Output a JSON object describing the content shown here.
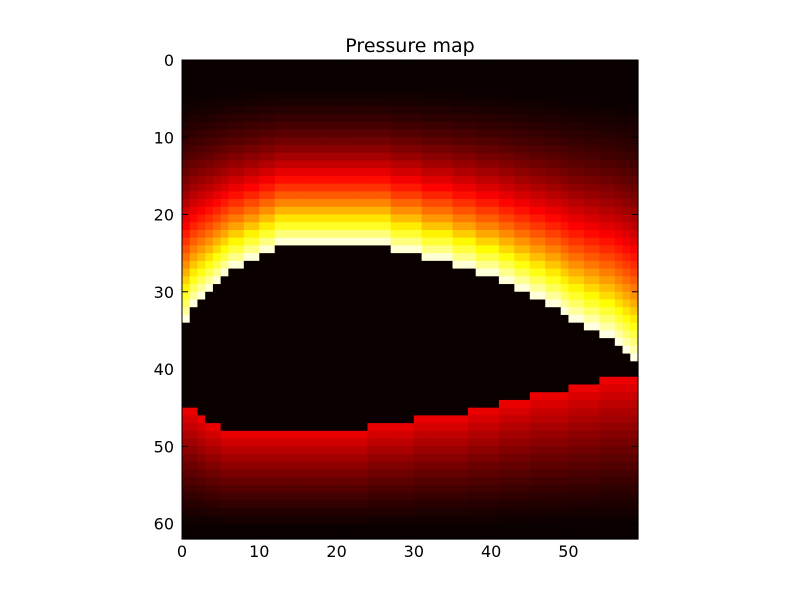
{
  "chart_data": {
    "type": "heatmap",
    "title": "Pressure map",
    "xlabel": "",
    "ylabel": "",
    "colormap": "hot",
    "xlim": [
      0,
      59
    ],
    "ylim": [
      62,
      0
    ],
    "xticks": [
      0,
      10,
      20,
      30,
      40,
      50
    ],
    "yticks": [
      0,
      10,
      20,
      30,
      40,
      50,
      60
    ],
    "grid_shape": {
      "rows": 62,
      "cols": 59
    },
    "field_description_values": {
      "upper_band_peak_row_center": 25,
      "upper_band_peak_row_edges": 40,
      "upper_band_max_value": 1.0,
      "lower_band_start_row_left": 45,
      "lower_band_start_row_right": 41,
      "lower_band_max_value": 0.35,
      "obstacle_value": 0.0
    },
    "obstacle_top_boundary": [
      [
        0,
        34
      ],
      [
        1,
        32
      ],
      [
        2,
        31
      ],
      [
        3,
        30
      ],
      [
        4,
        29
      ],
      [
        5,
        28
      ],
      [
        6,
        27
      ],
      [
        7,
        27
      ],
      [
        8,
        26
      ],
      [
        9,
        26
      ],
      [
        10,
        25
      ],
      [
        11,
        25
      ],
      [
        12,
        24
      ],
      [
        13,
        24
      ],
      [
        14,
        24
      ],
      [
        15,
        24
      ],
      [
        16,
        24
      ],
      [
        17,
        24
      ],
      [
        18,
        24
      ],
      [
        19,
        24
      ],
      [
        20,
        24
      ],
      [
        21,
        24
      ],
      [
        22,
        24
      ],
      [
        23,
        24
      ],
      [
        24,
        24
      ],
      [
        25,
        24
      ],
      [
        26,
        24
      ],
      [
        27,
        25
      ],
      [
        28,
        25
      ],
      [
        29,
        25
      ],
      [
        30,
        25
      ],
      [
        31,
        26
      ],
      [
        32,
        26
      ],
      [
        33,
        26
      ],
      [
        34,
        26
      ],
      [
        35,
        27
      ],
      [
        36,
        27
      ],
      [
        37,
        27
      ],
      [
        38,
        28
      ],
      [
        39,
        28
      ],
      [
        40,
        28
      ],
      [
        41,
        29
      ],
      [
        42,
        29
      ],
      [
        43,
        30
      ],
      [
        44,
        30
      ],
      [
        45,
        31
      ],
      [
        46,
        31
      ],
      [
        47,
        32
      ],
      [
        48,
        32
      ],
      [
        49,
        33
      ],
      [
        50,
        34
      ],
      [
        51,
        34
      ],
      [
        52,
        35
      ],
      [
        53,
        35
      ],
      [
        54,
        36
      ],
      [
        55,
        36
      ],
      [
        56,
        37
      ],
      [
        57,
        38
      ],
      [
        58,
        39
      ]
    ],
    "obstacle_bottom_boundary": [
      [
        0,
        45
      ],
      [
        1,
        45
      ],
      [
        2,
        46
      ],
      [
        3,
        47
      ],
      [
        4,
        47
      ],
      [
        5,
        48
      ],
      [
        6,
        48
      ],
      [
        7,
        48
      ],
      [
        8,
        48
      ],
      [
        9,
        48
      ],
      [
        10,
        48
      ],
      [
        11,
        48
      ],
      [
        12,
        48
      ],
      [
        13,
        48
      ],
      [
        14,
        48
      ],
      [
        15,
        48
      ],
      [
        16,
        48
      ],
      [
        17,
        48
      ],
      [
        18,
        48
      ],
      [
        19,
        48
      ],
      [
        20,
        48
      ],
      [
        21,
        48
      ],
      [
        22,
        48
      ],
      [
        23,
        48
      ],
      [
        24,
        47
      ],
      [
        25,
        47
      ],
      [
        26,
        47
      ],
      [
        27,
        47
      ],
      [
        28,
        47
      ],
      [
        29,
        47
      ],
      [
        30,
        46
      ],
      [
        31,
        46
      ],
      [
        32,
        46
      ],
      [
        33,
        46
      ],
      [
        34,
        46
      ],
      [
        35,
        46
      ],
      [
        36,
        46
      ],
      [
        37,
        45
      ],
      [
        38,
        45
      ],
      [
        39,
        45
      ],
      [
        40,
        45
      ],
      [
        41,
        44
      ],
      [
        42,
        44
      ],
      [
        43,
        44
      ],
      [
        44,
        44
      ],
      [
        45,
        43
      ],
      [
        46,
        43
      ],
      [
        47,
        43
      ],
      [
        48,
        43
      ],
      [
        49,
        43
      ],
      [
        50,
        42
      ],
      [
        51,
        42
      ],
      [
        52,
        42
      ],
      [
        53,
        42
      ],
      [
        54,
        41
      ],
      [
        55,
        41
      ],
      [
        56,
        41
      ],
      [
        57,
        41
      ],
      [
        58,
        41
      ]
    ]
  }
}
